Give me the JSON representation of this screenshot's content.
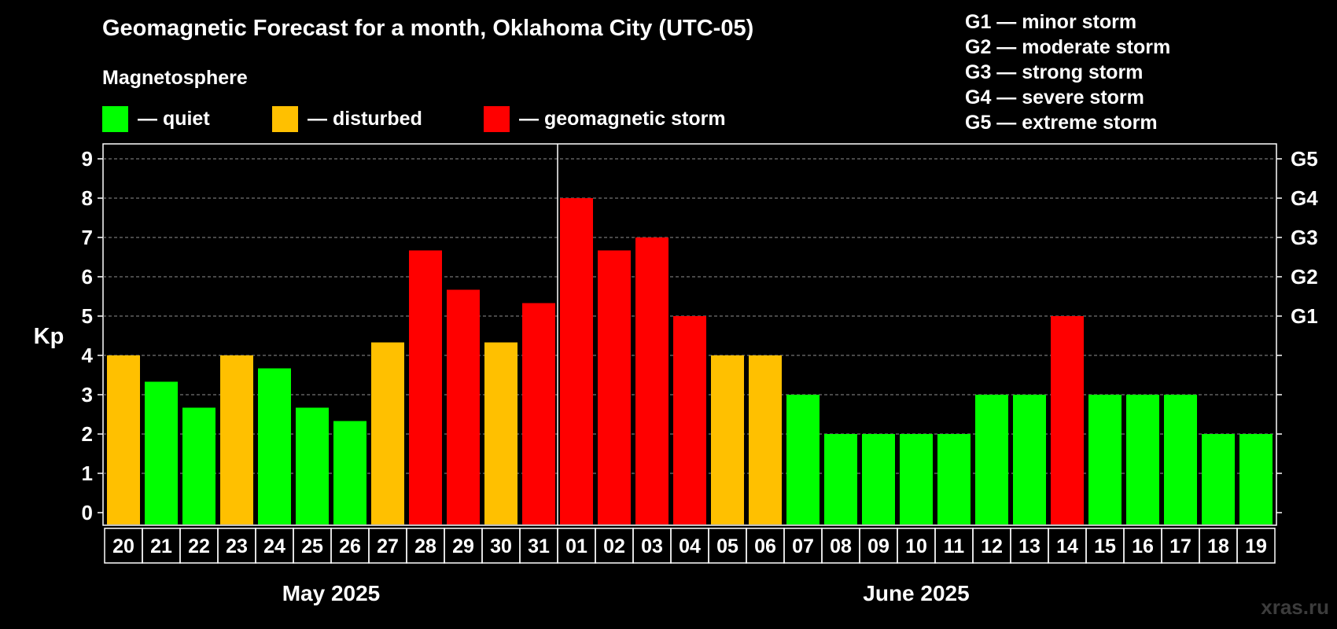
{
  "header": {
    "title": "Geomagnetic Forecast for a month, Oklahoma City (UTC-05)",
    "subtitle": "Magnetosphere"
  },
  "legend": [
    {
      "label": "— quiet",
      "color": "#00ff00"
    },
    {
      "label": "— disturbed",
      "color": "#ffc000"
    },
    {
      "label": "— geomagnetic storm",
      "color": "#ff0000"
    }
  ],
  "storm_levels": [
    "G1 — minor storm",
    "G2 — moderate storm",
    "G3 — strong storm",
    "G4 — severe storm",
    "G5 — extreme storm"
  ],
  "watermark": "xras.ru",
  "chart_data": {
    "type": "bar",
    "ylabel": "Kp",
    "ylim": [
      0,
      9
    ],
    "yticks": [
      "0",
      "1",
      "2",
      "3",
      "4",
      "5",
      "6",
      "7",
      "8",
      "9"
    ],
    "right_axis_labels": [
      {
        "kp": 5,
        "label": "G1"
      },
      {
        "kp": 6,
        "label": "G2"
      },
      {
        "kp": 7,
        "label": "G3"
      },
      {
        "kp": 8,
        "label": "G4"
      },
      {
        "kp": 9,
        "label": "G5"
      }
    ],
    "grid": true,
    "categories": [
      "20",
      "21",
      "22",
      "23",
      "24",
      "25",
      "26",
      "27",
      "28",
      "29",
      "30",
      "31",
      "01",
      "02",
      "03",
      "04",
      "05",
      "06",
      "07",
      "08",
      "09",
      "10",
      "11",
      "12",
      "13",
      "14",
      "15",
      "16",
      "17",
      "18",
      "19"
    ],
    "values": [
      4,
      3.33,
      2.67,
      4,
      3.67,
      2.67,
      2.33,
      4.33,
      6.67,
      5.67,
      4.33,
      5.33,
      8,
      6.67,
      7,
      5,
      4,
      4,
      3,
      2,
      2,
      2,
      2,
      3,
      3,
      5,
      3,
      3,
      3,
      2,
      2
    ],
    "colors": [
      "#ffc000",
      "#00ff00",
      "#00ff00",
      "#ffc000",
      "#00ff00",
      "#00ff00",
      "#00ff00",
      "#ffc000",
      "#ff0000",
      "#ff0000",
      "#ffc000",
      "#ff0000",
      "#ff0000",
      "#ff0000",
      "#ff0000",
      "#ff0000",
      "#ffc000",
      "#ffc000",
      "#00ff00",
      "#00ff00",
      "#00ff00",
      "#00ff00",
      "#00ff00",
      "#00ff00",
      "#00ff00",
      "#ff0000",
      "#00ff00",
      "#00ff00",
      "#00ff00",
      "#00ff00",
      "#00ff00"
    ],
    "months": [
      {
        "label": "May 2025",
        "start": 0,
        "end": 11
      },
      {
        "label": "June 2025",
        "start": 12,
        "end": 30
      }
    ]
  }
}
